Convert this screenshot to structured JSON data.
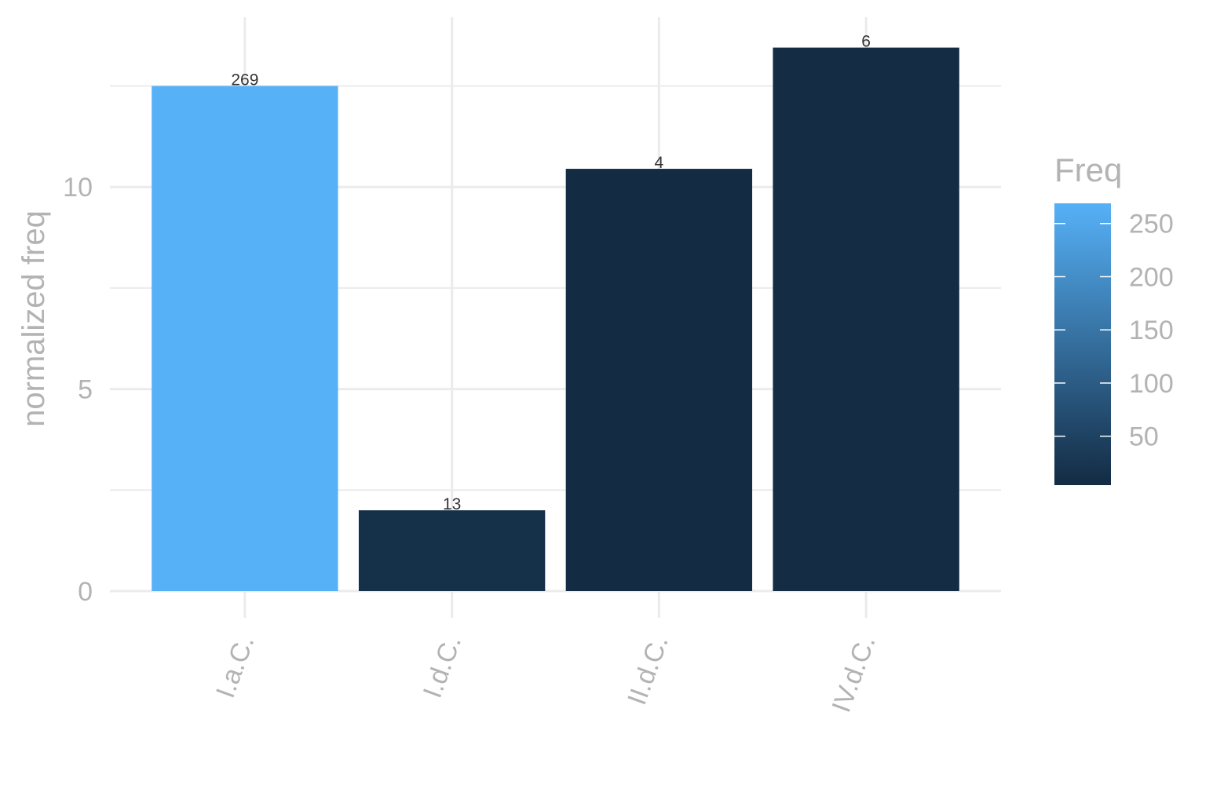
{
  "chart_data": {
    "type": "bar",
    "categories": [
      "I.a.C.",
      "I.d.C.",
      "II.d.C.",
      "IV.d.C."
    ],
    "values": [
      12.5,
      2.0,
      10.45,
      13.45
    ],
    "bar_labels": [
      "269",
      "13",
      "4",
      "6"
    ],
    "fill_values": [
      269,
      13,
      4,
      6
    ],
    "ylabel": "normalized freq",
    "xlabel": "",
    "ylim": [
      0,
      14.2
    ],
    "y_ticks": [
      0,
      5,
      10
    ],
    "y_tick_labels": [
      "0",
      "5",
      "10"
    ],
    "grid": true,
    "legend": {
      "title": "Freq",
      "position": "right",
      "type": "colorbar",
      "range": [
        4,
        269
      ],
      "ticks": [
        50,
        100,
        150,
        200,
        250
      ],
      "tick_labels": [
        "50",
        "100",
        "150",
        "200",
        "250"
      ],
      "low_color": "#132B43",
      "high_color": "#56B1F7"
    }
  }
}
